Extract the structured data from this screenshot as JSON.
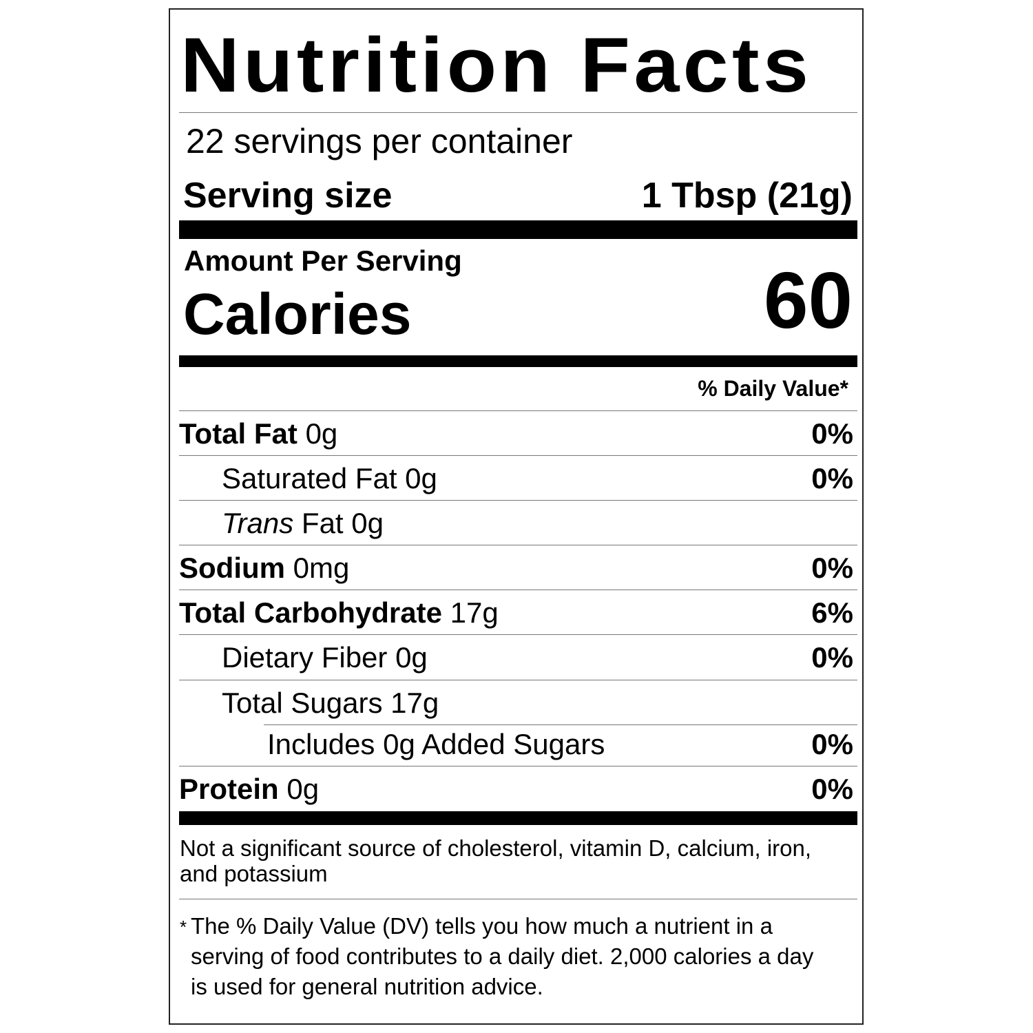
{
  "title": "Nutrition Facts",
  "servings": "22 servings per container",
  "serving_size": {
    "label": "Serving size",
    "value": "1 Tbsp (21g)"
  },
  "amount_per_serving": "Amount Per Serving",
  "calories": {
    "label": "Calories",
    "value": 60
  },
  "daily_value_header": "% Daily Value*",
  "nutrients": [
    {
      "name": "Total Fat",
      "amount": "0g",
      "dv": "0%"
    },
    {
      "name": "Saturated Fat",
      "amount": "0g",
      "dv": "0%"
    },
    {
      "name_italic": "Trans",
      "name": "Fat",
      "amount": "0g"
    },
    {
      "name": "Sodium",
      "amount": "0mg",
      "dv": "0%"
    },
    {
      "name": "Total Carbohydrate",
      "amount": "17g",
      "dv": "6%"
    },
    {
      "name": "Dietary Fiber",
      "amount": "0g",
      "dv": "0%"
    },
    {
      "name": "Total Sugars",
      "amount": "17g"
    },
    {
      "name": "Includes 0g Added Sugars",
      "dv": "0%"
    },
    {
      "name": "Protein",
      "amount": "0g",
      "dv": "0%"
    }
  ],
  "note": "Not a significant source of cholesterol, vitamin D, calcium, iron, and potassium",
  "footnote_marker": "*",
  "footnote": "The % Daily Value (DV) tells you how much a nutrient in a serving of food contributes to a daily diet. 2,000 calories a day is used for general nutrition advice."
}
